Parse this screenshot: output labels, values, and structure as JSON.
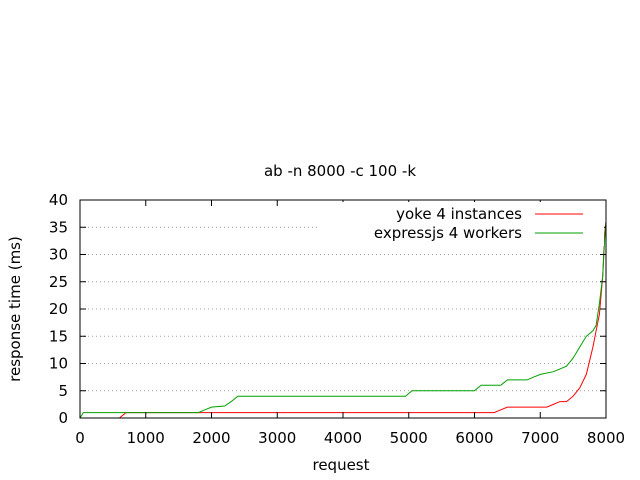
{
  "chart_data": {
    "type": "line",
    "title": "ab -n 8000 -c 100 -k",
    "xlabel": "request",
    "ylabel": "response time (ms)",
    "xlim": [
      0,
      8000
    ],
    "ylim": [
      0,
      40
    ],
    "xticks": [
      0,
      1000,
      2000,
      3000,
      4000,
      5000,
      6000,
      7000,
      8000
    ],
    "yticks": [
      0,
      5,
      10,
      15,
      20,
      25,
      30,
      35,
      40
    ],
    "grid": "horizontal dotted",
    "legend_position": "top-right",
    "series": [
      {
        "name": "yoke 4 instances",
        "color": "#ff0000",
        "points": [
          [
            0,
            0
          ],
          [
            600,
            0
          ],
          [
            700,
            1
          ],
          [
            1000,
            1
          ],
          [
            2000,
            1
          ],
          [
            3000,
            1
          ],
          [
            4000,
            1
          ],
          [
            5000,
            1
          ],
          [
            6000,
            1
          ],
          [
            6300,
            1
          ],
          [
            6400,
            1.5
          ],
          [
            6500,
            2
          ],
          [
            6800,
            2
          ],
          [
            7100,
            2
          ],
          [
            7200,
            2.5
          ],
          [
            7300,
            3
          ],
          [
            7400,
            3
          ],
          [
            7500,
            4
          ],
          [
            7600,
            5.5
          ],
          [
            7700,
            8
          ],
          [
            7800,
            13
          ],
          [
            7850,
            16
          ],
          [
            7900,
            19
          ],
          [
            7950,
            26
          ],
          [
            7980,
            34
          ],
          [
            8000,
            36
          ]
        ]
      },
      {
        "name": "expressjs 4 workers",
        "color": "#00a000",
        "points": [
          [
            0,
            0
          ],
          [
            50,
            1
          ],
          [
            1000,
            1
          ],
          [
            1800,
            1
          ],
          [
            1900,
            1.5
          ],
          [
            2000,
            2
          ],
          [
            2200,
            2.2
          ],
          [
            2300,
            3
          ],
          [
            2400,
            4
          ],
          [
            3000,
            4
          ],
          [
            4000,
            4
          ],
          [
            4950,
            4
          ],
          [
            5050,
            5
          ],
          [
            6000,
            5
          ],
          [
            6100,
            6
          ],
          [
            6400,
            6
          ],
          [
            6500,
            7
          ],
          [
            6800,
            7
          ],
          [
            6900,
            7.5
          ],
          [
            7000,
            8
          ],
          [
            7200,
            8.5
          ],
          [
            7400,
            9.5
          ],
          [
            7500,
            11
          ],
          [
            7600,
            13
          ],
          [
            7700,
            15
          ],
          [
            7800,
            16
          ],
          [
            7850,
            17
          ],
          [
            7900,
            21
          ],
          [
            7950,
            26
          ],
          [
            7980,
            33
          ],
          [
            8000,
            36
          ]
        ]
      }
    ]
  }
}
